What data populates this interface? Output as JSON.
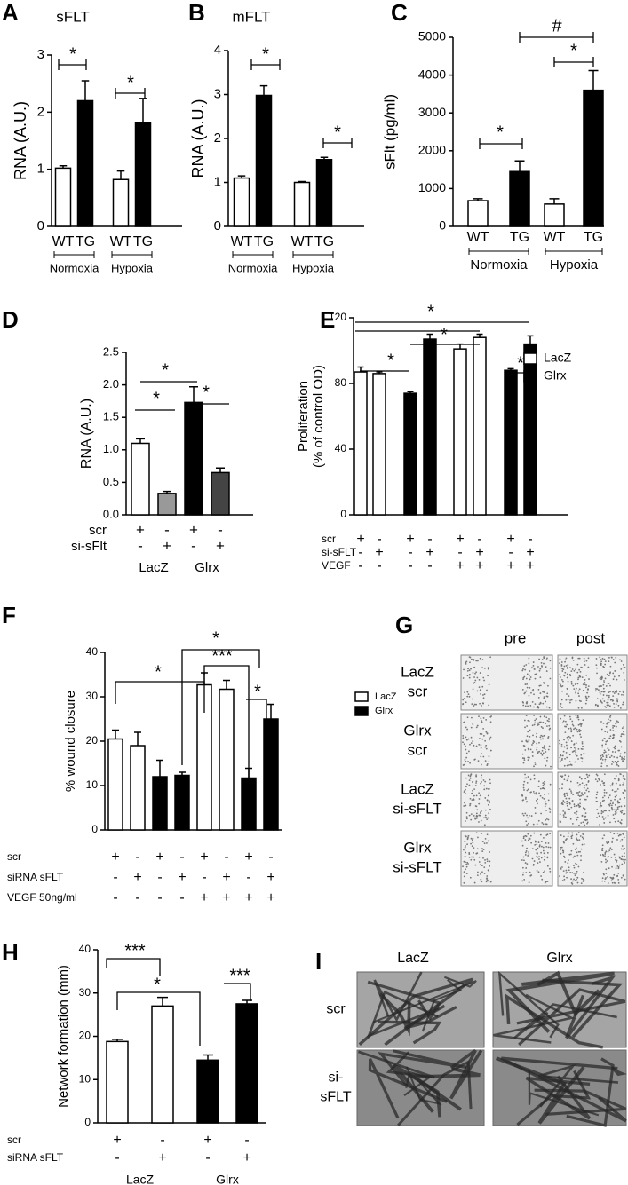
{
  "chart_data": [
    {
      "type": "bar",
      "panel": "A",
      "title": "sFLT",
      "ylabel": "RNA (A.U.)",
      "ylim": [
        0,
        3
      ],
      "yticks": [
        0,
        1,
        2,
        3
      ],
      "categories": [
        "WT",
        "TG",
        "WT",
        "TG"
      ],
      "groups": [
        "Normoxia",
        "Hypoxia"
      ],
      "values": [
        1.02,
        2.2,
        0.82,
        1.82
      ],
      "errors": [
        0.04,
        0.35,
        0.15,
        0.42
      ],
      "colors": [
        "#ffffff",
        "#000000",
        "#ffffff",
        "#000000"
      ],
      "annotations": [
        "*",
        "*"
      ]
    },
    {
      "type": "bar",
      "panel": "B",
      "title": "mFLT",
      "ylabel": "RNA (A.U.)",
      "ylim": [
        0,
        4
      ],
      "yticks": [
        0,
        1,
        2,
        3,
        4
      ],
      "categories": [
        "WT",
        "TG",
        "WT",
        "TG"
      ],
      "groups": [
        "Normoxia",
        "Hypoxia"
      ],
      "values": [
        1.1,
        2.98,
        1.0,
        1.52
      ],
      "errors": [
        0.05,
        0.22,
        0.02,
        0.05
      ],
      "colors": [
        "#ffffff",
        "#000000",
        "#ffffff",
        "#000000"
      ],
      "annotations": [
        "*",
        "*"
      ]
    },
    {
      "type": "bar",
      "panel": "C",
      "ylabel": "sFlt (pg/ml)",
      "ylim": [
        0,
        5000
      ],
      "yticks": [
        0,
        1000,
        2000,
        3000,
        4000,
        5000
      ],
      "categories": [
        "WT",
        "TG",
        "WT",
        "TG"
      ],
      "groups": [
        "Normoxia",
        "Hypoxia"
      ],
      "values": [
        680,
        1450,
        590,
        3600
      ],
      "errors": [
        50,
        280,
        140,
        520
      ],
      "colors": [
        "#ffffff",
        "#000000",
        "#ffffff",
        "#000000"
      ],
      "annotations": [
        "*",
        "*",
        "#"
      ]
    },
    {
      "type": "bar",
      "panel": "D",
      "ylabel": "RNA (A.U.)",
      "ylim": [
        0,
        2.5
      ],
      "yticks": [
        {
          "value": 0,
          "label": "0.0"
        },
        {
          "value": 0.5,
          "label": "0.5"
        },
        {
          "value": 1,
          "label": "1.0"
        },
        {
          "value": 1.5,
          "label": "1.5"
        },
        {
          "value": 2,
          "label": "2.0"
        },
        {
          "value": 2.5,
          "label": "2.5"
        }
      ],
      "condition_rows": [
        {
          "name": "scr",
          "values": [
            "+",
            "-",
            "+",
            "-"
          ]
        },
        {
          "name": "si-sFlt",
          "values": [
            "-",
            "+",
            "-",
            "+"
          ]
        }
      ],
      "groups": [
        "LacZ",
        "Glrx"
      ],
      "values": [
        1.1,
        0.33,
        1.73,
        0.65
      ],
      "errors": [
        0.07,
        0.03,
        0.24,
        0.07
      ],
      "colors": [
        "#ffffff",
        "#999999",
        "#000000",
        "#444444"
      ],
      "annotations": [
        "*",
        "*",
        "*"
      ]
    },
    {
      "type": "bar",
      "panel": "E",
      "ylabel": [
        "Proliferation",
        "(% of control OD)"
      ],
      "ylim": [
        0,
        120
      ],
      "yticks": [
        0,
        40,
        80,
        120
      ],
      "condition_rows": [
        {
          "name": "scr",
          "values": [
            "+",
            "-",
            "+",
            "-",
            "+",
            "-",
            "+",
            "-"
          ]
        },
        {
          "name": "si-sFLT",
          "values": [
            "-",
            "+",
            "-",
            "+",
            "-",
            "+",
            "-",
            "+"
          ]
        },
        {
          "name": "VEGF",
          "values": [
            "-",
            "-",
            "-",
            "-",
            "+",
            "+",
            "+",
            "+"
          ]
        }
      ],
      "values": [
        87,
        86,
        74,
        107,
        101,
        108,
        88,
        104
      ],
      "errors": [
        3,
        1,
        1,
        3,
        3,
        2,
        1,
        5
      ],
      "colors": [
        "#ffffff",
        "#ffffff",
        "#000000",
        "#000000",
        "#ffffff",
        "#ffffff",
        "#000000",
        "#000000"
      ],
      "legend": [
        {
          "name": "LacZ",
          "color": "#ffffff"
        },
        {
          "name": "Glrx",
          "color": "#000000"
        }
      ],
      "annotations": [
        "*",
        "*",
        "*",
        "*"
      ]
    },
    {
      "type": "bar",
      "panel": "F",
      "ylabel": "% wound closure",
      "ylim": [
        0,
        40
      ],
      "yticks": [
        0,
        10,
        20,
        30,
        40
      ],
      "condition_rows": [
        {
          "name": "scr",
          "values": [
            "+",
            "-",
            "+",
            "-",
            "+",
            "-",
            "+",
            "-"
          ]
        },
        {
          "name": "siRNA sFLT",
          "values": [
            "-",
            "+",
            "-",
            "+",
            "-",
            "+",
            "-",
            "+"
          ]
        },
        {
          "name": "VEGF 50ng/ml",
          "values": [
            "-",
            "-",
            "-",
            "-",
            "+",
            "+",
            "+",
            "+"
          ]
        }
      ],
      "values": [
        20.5,
        19,
        12,
        12.3,
        32.7,
        31.7,
        11.7,
        25
      ],
      "errors": [
        2,
        3,
        3.7,
        0.7,
        2.7,
        2,
        2.2,
        3.3
      ],
      "colors": [
        "#ffffff",
        "#ffffff",
        "#000000",
        "#000000",
        "#ffffff",
        "#ffffff",
        "#000000",
        "#000000"
      ],
      "legend": [
        {
          "name": "LacZ",
          "color": "#ffffff"
        },
        {
          "name": "Glrx",
          "color": "#000000"
        }
      ],
      "annotations": [
        "*",
        "*",
        "***",
        "*"
      ]
    },
    {
      "type": "bar",
      "panel": "H",
      "ylabel": "Network formation (mm)",
      "ylim": [
        0,
        40
      ],
      "yticks": [
        0,
        10,
        20,
        30,
        40
      ],
      "condition_rows": [
        {
          "name": "scr",
          "values": [
            "+",
            "-",
            "+",
            "-"
          ]
        },
        {
          "name": "siRNA sFLT",
          "values": [
            "-",
            "+",
            "-",
            "+"
          ]
        }
      ],
      "groups": [
        "LacZ",
        "Glrx"
      ],
      "values": [
        18.8,
        27,
        14.5,
        27.5
      ],
      "errors": [
        0.5,
        2,
        1.2,
        0.8
      ],
      "colors": [
        "#ffffff",
        "#ffffff",
        "#000000",
        "#000000"
      ],
      "annotations": [
        "***",
        "*",
        "***"
      ]
    }
  ],
  "image_panels": [
    {
      "panel": "G",
      "column_labels": [
        "pre",
        "post"
      ],
      "row_labels": [
        [
          "LacZ",
          "scr"
        ],
        [
          "Glrx",
          "scr"
        ],
        [
          "LacZ",
          "si-sFLT"
        ],
        [
          "Glrx",
          "si-sFLT"
        ]
      ]
    },
    {
      "panel": "I",
      "column_labels": [
        "LacZ",
        "Glrx"
      ],
      "row_labels": [
        [
          "scr"
        ],
        [
          "si-",
          "sFLT"
        ]
      ]
    }
  ]
}
